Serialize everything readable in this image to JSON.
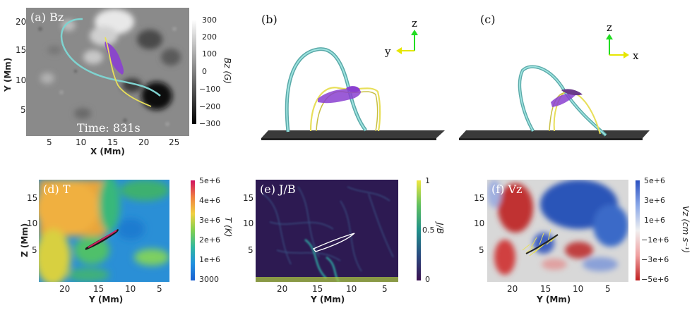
{
  "panels": {
    "a": {
      "label": "(a) Bz",
      "time_label": "Time: 831s",
      "xlabel": "X (Mm)",
      "ylabel": "Y (Mm)",
      "xticks": [
        "5",
        "10",
        "15",
        "20",
        "25"
      ],
      "yticks": [
        "20",
        "15",
        "10",
        "5"
      ],
      "colorbar_title": "Bz (G)",
      "colorbar_ticks": [
        "300",
        "200",
        "100",
        "0",
        "−100",
        "−200",
        "−300"
      ]
    },
    "b": {
      "label": "(b)",
      "axis_z": "z",
      "axis_y": "y"
    },
    "c": {
      "label": "(c)",
      "axis_z": "z",
      "axis_x": "x"
    },
    "d": {
      "label": "(d) T",
      "xlabel": "Y (Mm)",
      "ylabel": "Z (Mm)",
      "xticks": [
        "20",
        "15",
        "10",
        "5"
      ],
      "yticks": [
        "15",
        "10",
        "5"
      ],
      "colorbar_title": "T (K)",
      "colorbar_ticks": [
        "5e+6",
        "4e+6",
        "3e+6",
        "2e+6",
        "1e+6",
        "3000"
      ]
    },
    "e": {
      "label": "(e) J/B",
      "xlabel": "Y (Mm)",
      "xticks": [
        "20",
        "15",
        "10",
        "5"
      ],
      "yticks": [
        "15",
        "10",
        "5"
      ],
      "colorbar_title": "J/B",
      "colorbar_ticks": [
        "1",
        "0.5",
        "0"
      ]
    },
    "f": {
      "label": "(f) Vz",
      "xlabel": "Y (Mm)",
      "xticks": [
        "20",
        "15",
        "10",
        "5"
      ],
      "yticks": [
        "15",
        "10",
        "5"
      ],
      "colorbar_title": "Vz (cm s⁻¹)",
      "colorbar_ticks": [
        "5e+6",
        "3e+6",
        "1e+6",
        "−1e+6",
        "−3e+6",
        "−5e+6"
      ]
    }
  },
  "colors": {
    "fieldline_cyan": "#7fd3d0",
    "fieldline_yellow": "#e8df5a",
    "current_purple": "#8a3fd0",
    "axis_green": "#22dd22",
    "axis_yellow": "#e6e600"
  }
}
